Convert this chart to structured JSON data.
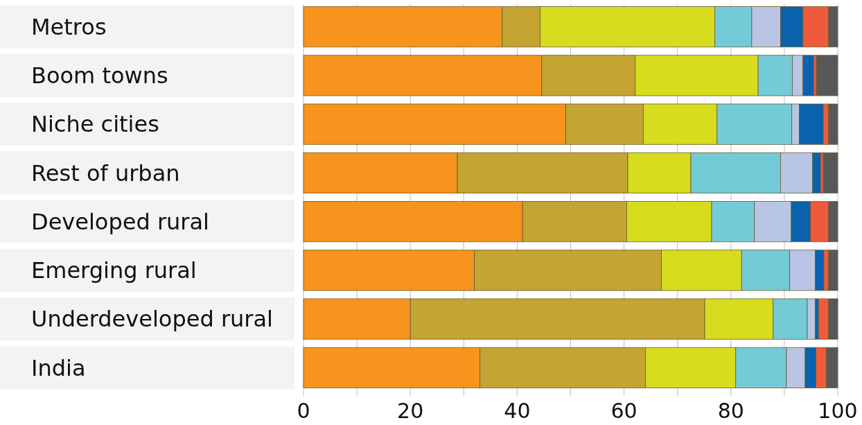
{
  "chart_data": {
    "type": "bar",
    "orientation": "horizontal",
    "stacked": true,
    "categories": [
      "Metros",
      "Boom towns",
      "Niche cities",
      "Rest of urban",
      "Developed rural",
      "Emerging rural",
      "Underdeveloped rural",
      "India"
    ],
    "series": [
      {
        "color": "#f7941d",
        "values": [
          37.2,
          44.6,
          49.1,
          28.8,
          41.0,
          32.0,
          20.0,
          33.0
        ]
      },
      {
        "color": "#c4a432",
        "values": [
          7.1,
          17.5,
          14.5,
          31.9,
          19.5,
          35.0,
          55.1,
          31.0
        ]
      },
      {
        "color": "#d7dc1f",
        "values": [
          32.7,
          23.0,
          13.8,
          11.8,
          15.9,
          15.0,
          12.8,
          16.9
        ]
      },
      {
        "color": "#74cbd8",
        "values": [
          6.9,
          6.4,
          14.0,
          16.8,
          8.0,
          9.0,
          6.4,
          9.5
        ]
      },
      {
        "color": "#b8c5e4",
        "values": [
          5.4,
          2.0,
          1.4,
          6.0,
          6.9,
          4.8,
          1.5,
          3.5
        ]
      },
      {
        "color": "#0a62ad",
        "values": [
          4.2,
          2.0,
          4.5,
          1.5,
          3.6,
          1.6,
          0.6,
          2.0
        ]
      },
      {
        "color": "#f05a3c",
        "values": [
          4.8,
          0.5,
          1.0,
          0.5,
          3.4,
          0.9,
          1.9,
          2.0
        ]
      },
      {
        "color": "#58585a",
        "values": [
          1.7,
          4.0,
          1.7,
          2.7,
          1.7,
          1.7,
          1.7,
          2.1
        ]
      }
    ],
    "xlim": [
      0,
      100
    ],
    "xticks": [
      0,
      {
        "value": 10,
        "label": null
      },
      20,
      {
        "value": 30,
        "label": null
      },
      40,
      {
        "value": 50,
        "label": null
      },
      60,
      {
        "value": 70,
        "label": null
      },
      80,
      {
        "value": 90,
        "label": null
      },
      100
    ],
    "grid": "x"
  }
}
